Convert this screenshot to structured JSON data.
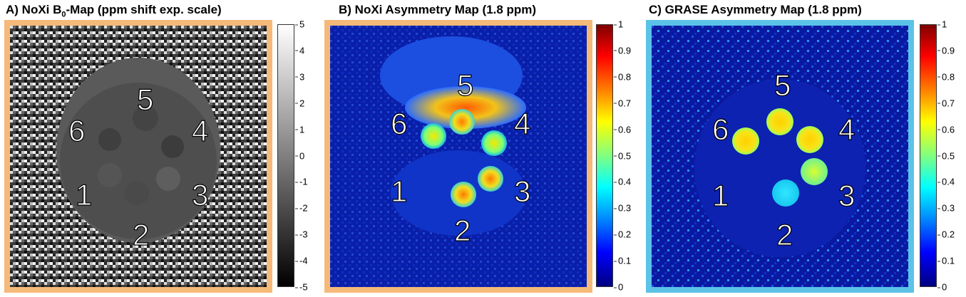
{
  "panels": [
    {
      "id": "A",
      "title_main": "A) NoXi B",
      "title_sub": "0",
      "title_rest": "-Map (ppm shift exp. scale)",
      "frame_color": "#f5b97a",
      "colormap": "gray",
      "ticks": [
        "5",
        "4",
        "3",
        "2",
        "1",
        "0",
        "-1",
        "-2",
        "-3",
        "-4",
        "-5"
      ],
      "labels": [
        "5",
        "6",
        "4",
        "1",
        "3",
        "2"
      ]
    },
    {
      "id": "B",
      "title_main": "B) NoXi Asymmetry Map (1.8 ppm)",
      "title_sub": "",
      "title_rest": "",
      "frame_color": "#f5b97a",
      "colormap": "jet",
      "ticks": [
        "1",
        "0.9",
        "0.8",
        "0.7",
        "0.6",
        "0.5",
        "0.4",
        "0.3",
        "0.2",
        "0.1",
        "0"
      ],
      "labels": [
        "5",
        "6",
        "4",
        "1",
        "3",
        "2"
      ]
    },
    {
      "id": "C",
      "title_main": "C) GRASE Asymmetry Map (1.8 ppm)",
      "title_sub": "",
      "title_rest": "",
      "frame_color": "#5bc3e8",
      "colormap": "jet",
      "ticks": [
        "1",
        "0.9",
        "0.8",
        "0.7",
        "0.6",
        "0.5",
        "0.4",
        "0.3",
        "0.2",
        "0.1",
        "0"
      ],
      "labels": [
        "5",
        "6",
        "4",
        "1",
        "3",
        "2"
      ]
    }
  ]
}
